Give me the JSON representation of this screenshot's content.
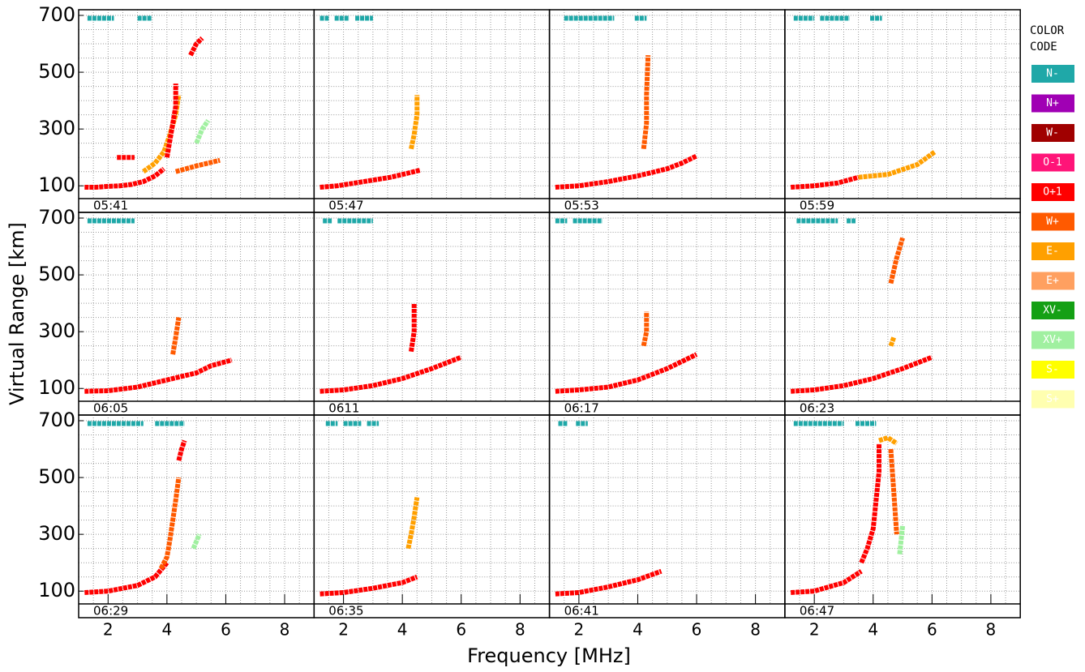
{
  "chart_data": {
    "type": "scatter",
    "x_label": "Frequency [MHz]",
    "y_label": "Virtual Range [km]",
    "xlim": [
      1,
      9
    ],
    "ylim": [
      55,
      720
    ],
    "xticks": [
      2,
      4,
      6,
      8
    ],
    "yticks": [
      100,
      300,
      500,
      700
    ],
    "xgrid": [
      1.5,
      2,
      2.5,
      3,
      3.5,
      4,
      4.5,
      5,
      5.5,
      6,
      6.5,
      7,
      7.5,
      8,
      8.5
    ],
    "ygrid": [
      100,
      150,
      200,
      250,
      300,
      350,
      400,
      450,
      500,
      550,
      600,
      650,
      700
    ],
    "grid": true,
    "legend_title": "COLOR CODE",
    "legend": [
      {
        "name": "N-",
        "color": "#1fa8a8"
      },
      {
        "name": "N+",
        "color": "#a000b4"
      },
      {
        "name": "W-",
        "color": "#a00000"
      },
      {
        "name": "O-1",
        "color": "#ff1478"
      },
      {
        "name": "O+1",
        "color": "#ff0000"
      },
      {
        "name": "W+",
        "color": "#ff5a00"
      },
      {
        "name": "E-",
        "color": "#ffa000"
      },
      {
        "name": "E+",
        "color": "#ffa060"
      },
      {
        "name": "XV-",
        "color": "#14a014"
      },
      {
        "name": "XV+",
        "color": "#a0f0a0"
      },
      {
        "name": "S-",
        "color": "#ffff00"
      },
      {
        "name": "S+",
        "color": "#ffffb0"
      }
    ],
    "panels": [
      {
        "label": "05:41",
        "series": [
          {
            "color": "#ff0000",
            "x": [
              1.2,
              1.6,
              2,
              2.4,
              2.8,
              3.2,
              3.6,
              3.9
            ],
            "y": [
              95,
              95,
              98,
              100,
              105,
              115,
              135,
              160
            ]
          },
          {
            "color": "#ffa000",
            "x": [
              3.2,
              3.6,
              3.9,
              4.1,
              4.3,
              4.4
            ],
            "y": [
              150,
              180,
              220,
              280,
              350,
              420
            ]
          },
          {
            "color": "#ff0000",
            "x": [
              4.0,
              4.1,
              4.2,
              4.3,
              4.3
            ],
            "y": [
              200,
              260,
              320,
              380,
              460
            ]
          },
          {
            "color": "#ff0000",
            "x": [
              4.8,
              5.0,
              5.2
            ],
            "y": [
              560,
              600,
              620
            ]
          },
          {
            "color": "#a0f0a0",
            "x": [
              5.0,
              5.2,
              5.4
            ],
            "y": [
              250,
              300,
              330
            ]
          },
          {
            "color": "#ff0000",
            "x": [
              2.3,
              2.9
            ],
            "y": [
              200,
              200
            ]
          },
          {
            "color": "#ff5a00",
            "x": [
              4.3,
              5,
              5.8
            ],
            "y": [
              150,
              170,
              190
            ]
          },
          {
            "color": "#1fa8a8",
            "x": [
              1.3,
              2.2,
              null,
              3.0,
              3.5
            ],
            "y": [
              690,
              690,
              null,
              690,
              690
            ]
          }
        ]
      },
      {
        "label": "05:47",
        "series": [
          {
            "color": "#ff0000",
            "x": [
              1.2,
              1.8,
              2.4,
              3,
              3.6,
              4.2,
              4.6
            ],
            "y": [
              95,
              100,
              110,
              120,
              130,
              145,
              155
            ]
          },
          {
            "color": "#ffa000",
            "x": [
              4.3,
              4.4,
              4.5,
              4.5
            ],
            "y": [
              230,
              280,
              350,
              420
            ]
          },
          {
            "color": "#1fa8a8",
            "x": [
              1.2,
              1.5,
              null,
              1.7,
              2.2,
              null,
              2.4,
              3.0
            ],
            "y": [
              690,
              690,
              null,
              690,
              690,
              null,
              690,
              690
            ]
          }
        ]
      },
      {
        "label": "05:53",
        "series": [
          {
            "color": "#ff0000",
            "x": [
              1.2,
              2,
              3,
              4,
              5,
              5.5,
              6
            ],
            "y": [
              95,
              100,
              115,
              135,
              160,
              180,
              205
            ]
          },
          {
            "color": "#ff5a00",
            "x": [
              4.2,
              4.3,
              4.3,
              4.35
            ],
            "y": [
              230,
              320,
              420,
              560
            ]
          },
          {
            "color": "#1fa8a8",
            "x": [
              1.5,
              3.2,
              null,
              3.9,
              4.3
            ],
            "y": [
              690,
              690,
              null,
              690,
              690
            ]
          }
        ]
      },
      {
        "label": "05:59",
        "series": [
          {
            "color": "#ff0000",
            "x": [
              1.2,
              2,
              2.8,
              3.5
            ],
            "y": [
              95,
              100,
              110,
              130
            ]
          },
          {
            "color": "#ffa000",
            "x": [
              3.5,
              4.5,
              5.5,
              6.1
            ],
            "y": [
              130,
              140,
              175,
              220
            ]
          },
          {
            "color": "#1fa8a8",
            "x": [
              1.3,
              2.0,
              null,
              2.2,
              3.2,
              null,
              3.9,
              4.3
            ],
            "y": [
              690,
              690,
              null,
              690,
              690,
              null,
              690,
              690
            ]
          }
        ]
      },
      {
        "label": "06:05",
        "series": [
          {
            "color": "#ff0000",
            "x": [
              1.2,
              2,
              3,
              4,
              5,
              5.5,
              6.2
            ],
            "y": [
              90,
              92,
              105,
              130,
              155,
              180,
              200
            ]
          },
          {
            "color": "#ff5a00",
            "x": [
              4.2,
              4.3,
              4.4
            ],
            "y": [
              220,
              280,
              350
            ]
          },
          {
            "color": "#1fa8a8",
            "x": [
              1.3,
              2.9
            ],
            "y": [
              690,
              690
            ]
          }
        ]
      },
      {
        "label": "0611",
        "series": [
          {
            "color": "#ff0000",
            "x": [
              1.2,
              2,
              3,
              4,
              5,
              6
            ],
            "y": [
              90,
              95,
              110,
              135,
              170,
              210
            ]
          },
          {
            "color": "#ff0000",
            "x": [
              4.3,
              4.4,
              4.4
            ],
            "y": [
              230,
              300,
              400
            ]
          },
          {
            "color": "#1fa8a8",
            "x": [
              1.3,
              1.6,
              null,
              1.8,
              3.0
            ],
            "y": [
              690,
              690,
              null,
              690,
              690
            ]
          }
        ]
      },
      {
        "label": "06:17",
        "series": [
          {
            "color": "#ff0000",
            "x": [
              1.2,
              2,
              3,
              4,
              5,
              6
            ],
            "y": [
              90,
              95,
              105,
              130,
              170,
              220
            ]
          },
          {
            "color": "#ff5a00",
            "x": [
              4.2,
              4.3,
              4.3
            ],
            "y": [
              250,
              300,
              370
            ]
          },
          {
            "color": "#1fa8a8",
            "x": [
              1.2,
              1.6,
              null,
              1.8,
              2.8
            ],
            "y": [
              690,
              690,
              null,
              690,
              690
            ]
          }
        ]
      },
      {
        "label": "06:23",
        "series": [
          {
            "color": "#ff0000",
            "x": [
              1.2,
              2,
              3,
              4,
              5,
              6
            ],
            "y": [
              90,
              95,
              110,
              135,
              170,
              210
            ]
          },
          {
            "color": "#ff5a00",
            "x": [
              4.6,
              4.8,
              5.0
            ],
            "y": [
              470,
              560,
              630
            ]
          },
          {
            "color": "#ffa000",
            "x": [
              4.6,
              4.7
            ],
            "y": [
              250,
              280
            ]
          },
          {
            "color": "#1fa8a8",
            "x": [
              1.4,
              2.8,
              null,
              3.1,
              3.4
            ],
            "y": [
              690,
              690,
              null,
              690,
              690
            ]
          }
        ]
      },
      {
        "label": "06:29",
        "series": [
          {
            "color": "#ff0000",
            "x": [
              1.2,
              2,
              3,
              3.6,
              4
            ],
            "y": [
              95,
              100,
              120,
              150,
              200
            ]
          },
          {
            "color": "#ff5a00",
            "x": [
              3.8,
              4.0,
              4.1,
              4.2,
              4.3,
              4.4
            ],
            "y": [
              180,
              220,
              280,
              350,
              420,
              500
            ]
          },
          {
            "color": "#ff0000",
            "x": [
              4.4,
              4.5,
              4.6
            ],
            "y": [
              560,
              600,
              630
            ]
          },
          {
            "color": "#a0f0a0",
            "x": [
              4.9,
              5.1
            ],
            "y": [
              250,
              300
            ]
          },
          {
            "color": "#1fa8a8",
            "x": [
              1.3,
              3.2,
              null,
              3.6,
              4.6
            ],
            "y": [
              690,
              690,
              null,
              690,
              690
            ]
          }
        ]
      },
      {
        "label": "06:35",
        "series": [
          {
            "color": "#ff0000",
            "x": [
              1.2,
              2,
              3,
              4,
              4.5
            ],
            "y": [
              90,
              95,
              110,
              130,
              150
            ]
          },
          {
            "color": "#ffa000",
            "x": [
              4.2,
              4.3,
              4.4,
              4.5
            ],
            "y": [
              250,
              300,
              360,
              430
            ]
          },
          {
            "color": "#1fa8a8",
            "x": [
              1.4,
              1.8,
              null,
              2.0,
              2.6,
              null,
              2.8,
              3.2
            ],
            "y": [
              690,
              690,
              null,
              690,
              690,
              null,
              690,
              690
            ]
          }
        ]
      },
      {
        "label": "06:41",
        "series": [
          {
            "color": "#ff0000",
            "x": [
              1.2,
              2,
              3,
              4,
              4.8
            ],
            "y": [
              90,
              95,
              115,
              140,
              170
            ]
          },
          {
            "color": "#1fa8a8",
            "x": [
              1.3,
              1.6,
              null,
              1.9,
              2.3
            ],
            "y": [
              690,
              690,
              null,
              690,
              690
            ]
          }
        ]
      },
      {
        "label": "06:47",
        "series": [
          {
            "color": "#ff0000",
            "x": [
              1.2,
              2,
              3,
              3.6
            ],
            "y": [
              95,
              100,
              130,
              170
            ]
          },
          {
            "color": "#ff0000",
            "x": [
              3.6,
              3.8,
              4.0,
              4.1,
              4.2,
              4.2
            ],
            "y": [
              200,
              250,
              320,
              420,
              520,
              620
            ]
          },
          {
            "color": "#ffa000",
            "x": [
              4.2,
              4.5,
              4.8
            ],
            "y": [
              630,
              640,
              620
            ]
          },
          {
            "color": "#ff5a00",
            "x": [
              4.6,
              4.7,
              4.8
            ],
            "y": [
              600,
              450,
              300
            ]
          },
          {
            "color": "#a0f0a0",
            "x": [
              4.9,
              5.0
            ],
            "y": [
              230,
              330
            ]
          },
          {
            "color": "#1fa8a8",
            "x": [
              1.3,
              3.0,
              null,
              3.4,
              4.1
            ],
            "y": [
              690,
              690,
              null,
              690,
              690
            ]
          }
        ]
      }
    ]
  }
}
